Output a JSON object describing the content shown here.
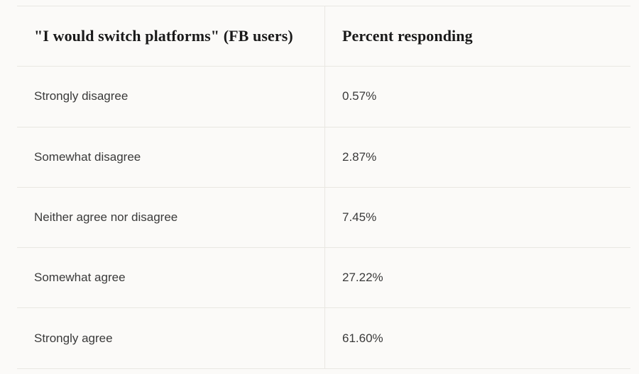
{
  "table": {
    "columns": [
      {
        "label": "\"I would switch platforms\" (FB users)"
      },
      {
        "label": "Percent responding"
      }
    ],
    "rows": [
      {
        "label": "Strongly disagree",
        "value": "0.57%"
      },
      {
        "label": "Somewhat disagree",
        "value": "2.87%"
      },
      {
        "label": "Neither agree nor disagree",
        "value": "7.45%"
      },
      {
        "label": "Somewhat agree",
        "value": "27.22%"
      },
      {
        "label": "Strongly agree",
        "value": "61.60%"
      }
    ]
  },
  "chart_data": {
    "type": "table",
    "title": "\"I would switch platforms\" (FB users)",
    "columns": [
      "\"I would switch platforms\" (FB users)",
      "Percent responding"
    ],
    "categories": [
      "Strongly disagree",
      "Somewhat disagree",
      "Neither agree nor disagree",
      "Somewhat agree",
      "Strongly agree"
    ],
    "values": [
      0.57,
      2.87,
      7.45,
      27.22,
      61.6
    ],
    "value_labels": [
      "0.57%",
      "2.87%",
      "7.45%",
      "27.22%",
      "61.60%"
    ],
    "legend": "none",
    "grid": "horizontal-row-separators"
  },
  "colors": {
    "background": "#fbfaf8",
    "border": "#e9e7e2",
    "header_text": "#1a1a1a",
    "body_text": "#3a3a3a"
  }
}
